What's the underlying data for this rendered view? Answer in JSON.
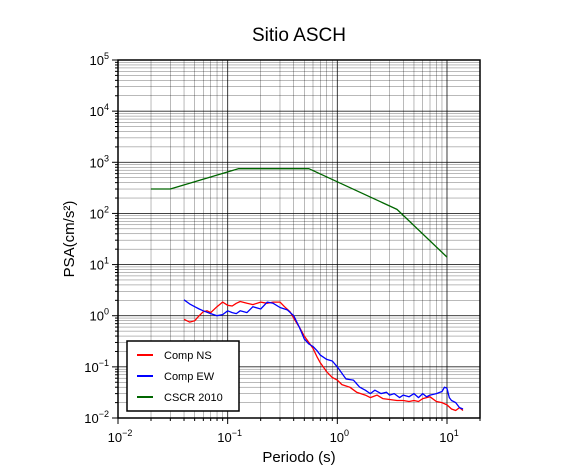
{
  "chart_data": {
    "type": "line",
    "title": "Sitio ASCH",
    "xlabel": "Periodo (s)",
    "ylabel": "PSA(cm/s²)",
    "x_scale": "log",
    "y_scale": "log",
    "xlim": [
      0.01,
      20
    ],
    "ylim": [
      0.01,
      100000
    ],
    "grid": true,
    "legend_position": "bottom-left",
    "x_ticks": [
      {
        "base": "10",
        "exp": "−2",
        "value": 0.01
      },
      {
        "base": "10",
        "exp": "−1",
        "value": 0.1
      },
      {
        "base": "10",
        "exp": "0",
        "value": 1
      },
      {
        "base": "10",
        "exp": "1",
        "value": 10
      }
    ],
    "y_ticks": [
      {
        "base": "10",
        "exp": "−2",
        "value": 0.01
      },
      {
        "base": "10",
        "exp": "−1",
        "value": 0.1
      },
      {
        "base": "10",
        "exp": "0",
        "value": 1
      },
      {
        "base": "10",
        "exp": "1",
        "value": 10
      },
      {
        "base": "10",
        "exp": "2",
        "value": 100
      },
      {
        "base": "10",
        "exp": "3",
        "value": 1000
      },
      {
        "base": "10",
        "exp": "4",
        "value": 10000
      },
      {
        "base": "10",
        "exp": "5",
        "value": 100000
      }
    ],
    "series": [
      {
        "name": "Comp NS",
        "color": "#ff0000",
        "points": [
          [
            0.04,
            0.85
          ],
          [
            0.045,
            0.75
          ],
          [
            0.05,
            0.8
          ],
          [
            0.055,
            1.0
          ],
          [
            0.06,
            1.2
          ],
          [
            0.065,
            1.25
          ],
          [
            0.07,
            1.15
          ],
          [
            0.08,
            1.5
          ],
          [
            0.09,
            1.85
          ],
          [
            0.1,
            1.6
          ],
          [
            0.11,
            1.55
          ],
          [
            0.12,
            1.75
          ],
          [
            0.13,
            1.9
          ],
          [
            0.15,
            1.75
          ],
          [
            0.17,
            1.65
          ],
          [
            0.2,
            1.85
          ],
          [
            0.23,
            1.75
          ],
          [
            0.26,
            1.85
          ],
          [
            0.3,
            1.85
          ],
          [
            0.33,
            1.5
          ],
          [
            0.37,
            1.2
          ],
          [
            0.4,
            0.9
          ],
          [
            0.45,
            0.6
          ],
          [
            0.5,
            0.4
          ],
          [
            0.55,
            0.3
          ],
          [
            0.6,
            0.23
          ],
          [
            0.65,
            0.16
          ],
          [
            0.7,
            0.12
          ],
          [
            0.8,
            0.08
          ],
          [
            0.9,
            0.062
          ],
          [
            1.0,
            0.055
          ],
          [
            1.1,
            0.045
          ],
          [
            1.3,
            0.04
          ],
          [
            1.5,
            0.032
          ],
          [
            1.8,
            0.028
          ],
          [
            2.0,
            0.025
          ],
          [
            2.3,
            0.028
          ],
          [
            2.6,
            0.024
          ],
          [
            3.0,
            0.023
          ],
          [
            3.5,
            0.022
          ],
          [
            4.0,
            0.022
          ],
          [
            4.5,
            0.021
          ],
          [
            5.0,
            0.022
          ],
          [
            5.5,
            0.021
          ],
          [
            6.0,
            0.024
          ],
          [
            7.0,
            0.026
          ],
          [
            8.0,
            0.021
          ],
          [
            9.0,
            0.02
          ],
          [
            10.0,
            0.018
          ],
          [
            11.0,
            0.015
          ],
          [
            12.0,
            0.014
          ],
          [
            13.0,
            0.016
          ],
          [
            14.0,
            0.014
          ]
        ]
      },
      {
        "name": "Comp EW",
        "color": "#0000ff",
        "points": [
          [
            0.04,
            2.05
          ],
          [
            0.045,
            1.7
          ],
          [
            0.05,
            1.5
          ],
          [
            0.055,
            1.35
          ],
          [
            0.06,
            1.25
          ],
          [
            0.07,
            1.1
          ],
          [
            0.08,
            1.0
          ],
          [
            0.09,
            1.05
          ],
          [
            0.1,
            1.25
          ],
          [
            0.11,
            1.15
          ],
          [
            0.12,
            1.1
          ],
          [
            0.13,
            1.25
          ],
          [
            0.15,
            1.15
          ],
          [
            0.17,
            1.5
          ],
          [
            0.2,
            1.35
          ],
          [
            0.23,
            1.85
          ],
          [
            0.26,
            1.75
          ],
          [
            0.3,
            1.45
          ],
          [
            0.35,
            1.3
          ],
          [
            0.4,
            1.0
          ],
          [
            0.45,
            0.6
          ],
          [
            0.5,
            0.35
          ],
          [
            0.55,
            0.28
          ],
          [
            0.6,
            0.25
          ],
          [
            0.65,
            0.21
          ],
          [
            0.7,
            0.17
          ],
          [
            0.8,
            0.14
          ],
          [
            0.9,
            0.13
          ],
          [
            1.0,
            0.1
          ],
          [
            1.1,
            0.075
          ],
          [
            1.2,
            0.058
          ],
          [
            1.4,
            0.055
          ],
          [
            1.6,
            0.04
          ],
          [
            1.8,
            0.035
          ],
          [
            2.0,
            0.03
          ],
          [
            2.2,
            0.035
          ],
          [
            2.5,
            0.03
          ],
          [
            2.8,
            0.032
          ],
          [
            3.0,
            0.028
          ],
          [
            3.3,
            0.03
          ],
          [
            3.7,
            0.025
          ],
          [
            4.0,
            0.028
          ],
          [
            4.5,
            0.026
          ],
          [
            5.0,
            0.03
          ],
          [
            5.5,
            0.025
          ],
          [
            6.0,
            0.03
          ],
          [
            6.5,
            0.026
          ],
          [
            7.0,
            0.028
          ],
          [
            8.0,
            0.03
          ],
          [
            9.0,
            0.033
          ],
          [
            9.5,
            0.04
          ],
          [
            10.0,
            0.038
          ],
          [
            10.5,
            0.025
          ],
          [
            11.0,
            0.022
          ],
          [
            12.0,
            0.02
          ],
          [
            13.0,
            0.016
          ],
          [
            14.0,
            0.015
          ]
        ]
      },
      {
        "name": "CSCR 2010",
        "color": "#006600",
        "points": [
          [
            0.02,
            300
          ],
          [
            0.03,
            300
          ],
          [
            0.125,
            750
          ],
          [
            0.55,
            750
          ],
          [
            3.5,
            120
          ],
          [
            10.0,
            14
          ]
        ]
      }
    ]
  }
}
